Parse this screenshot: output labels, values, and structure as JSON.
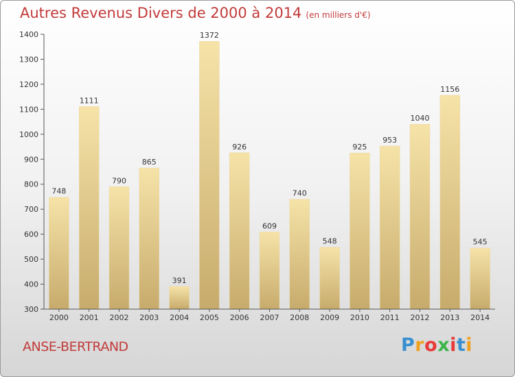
{
  "header": {
    "title": "Autres Revenus Divers de 2000 à 2014",
    "unit": "(en milliers d'€)"
  },
  "footer": {
    "commune": "ANSE-BERTRAND",
    "logo": [
      "P",
      "r",
      "o",
      "x",
      "i",
      "t",
      "i"
    ],
    "logo_colors": [
      "#3a8fd0",
      "#f0a020",
      "#e83a3a",
      "#3ab54a",
      "#e83a3a",
      "#3a8fd0",
      "#f0a020"
    ]
  },
  "colors": {
    "title": "#c23a3a",
    "bar_light": "#f4dfa0",
    "bar_dark": "#c4a868",
    "axis": "#555555"
  },
  "chart_data": {
    "type": "bar",
    "categories": [
      "2000",
      "2001",
      "2002",
      "2003",
      "2004",
      "2005",
      "2006",
      "2007",
      "2008",
      "2009",
      "2010",
      "2011",
      "2012",
      "2013",
      "2014"
    ],
    "values": [
      748,
      1111,
      790,
      865,
      391,
      1372,
      926,
      609,
      740,
      548,
      925,
      953,
      1040,
      1156,
      545
    ],
    "ylim": [
      300,
      1400
    ],
    "yticks": [
      300,
      400,
      500,
      600,
      700,
      800,
      900,
      1000,
      1100,
      1200,
      1300,
      1400
    ],
    "grid": false,
    "title": "Autres Revenus Divers de 2000 à 2014",
    "xlabel": "",
    "ylabel": ""
  }
}
